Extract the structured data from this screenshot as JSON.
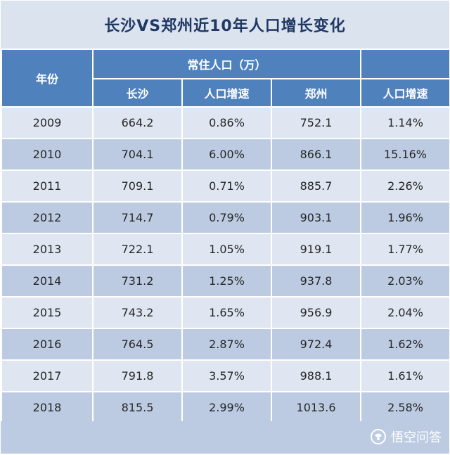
{
  "title": "长沙VS郑州近10年人口增长变化",
  "header": {
    "year": "年份",
    "group": "常住人口（万）",
    "changsha": "长沙",
    "changsha_growth": "人口增速",
    "zhengzhou": "郑州",
    "zhengzhou_growth": "人口增速"
  },
  "rows": [
    {
      "year": "2009",
      "changsha": "664.2",
      "cs_growth": "0.86%",
      "zhengzhou": "752.1",
      "zz_growth": "1.14%"
    },
    {
      "year": "2010",
      "changsha": "704.1",
      "cs_growth": "6.00%",
      "zhengzhou": "866.1",
      "zz_growth": "15.16%"
    },
    {
      "year": "2011",
      "changsha": "709.1",
      "cs_growth": "0.71%",
      "zhengzhou": "885.7",
      "zz_growth": "2.26%"
    },
    {
      "year": "2012",
      "changsha": "714.7",
      "cs_growth": "0.79%",
      "zhengzhou": "903.1",
      "zz_growth": "1.96%"
    },
    {
      "year": "2013",
      "changsha": "722.1",
      "cs_growth": "1.05%",
      "zhengzhou": "919.1",
      "zz_growth": "1.77%"
    },
    {
      "year": "2014",
      "changsha": "731.2",
      "cs_growth": "1.25%",
      "zhengzhou": "937.8",
      "zz_growth": "2.03%"
    },
    {
      "year": "2015",
      "changsha": "743.2",
      "cs_growth": "1.65%",
      "zhengzhou": "956.9",
      "zz_growth": "2.04%"
    },
    {
      "year": "2016",
      "changsha": "764.5",
      "cs_growth": "2.87%",
      "zhengzhou": "972.4",
      "zz_growth": "1.62%"
    },
    {
      "year": "2017",
      "changsha": "791.8",
      "cs_growth": "3.57%",
      "zhengzhou": "988.1",
      "zz_growth": "1.61%"
    },
    {
      "year": "2018",
      "changsha": "815.5",
      "cs_growth": "2.99%",
      "zhengzhou": "1013.6",
      "zz_growth": "2.58%"
    }
  ],
  "watermark": {
    "icon": "toutiao-logo-icon",
    "text": "悟空问答"
  },
  "colors": {
    "header": "#4f81bd",
    "row_light": "#dfe6f1",
    "row_dark": "#bccbe2",
    "title_text": "#1f3864"
  }
}
